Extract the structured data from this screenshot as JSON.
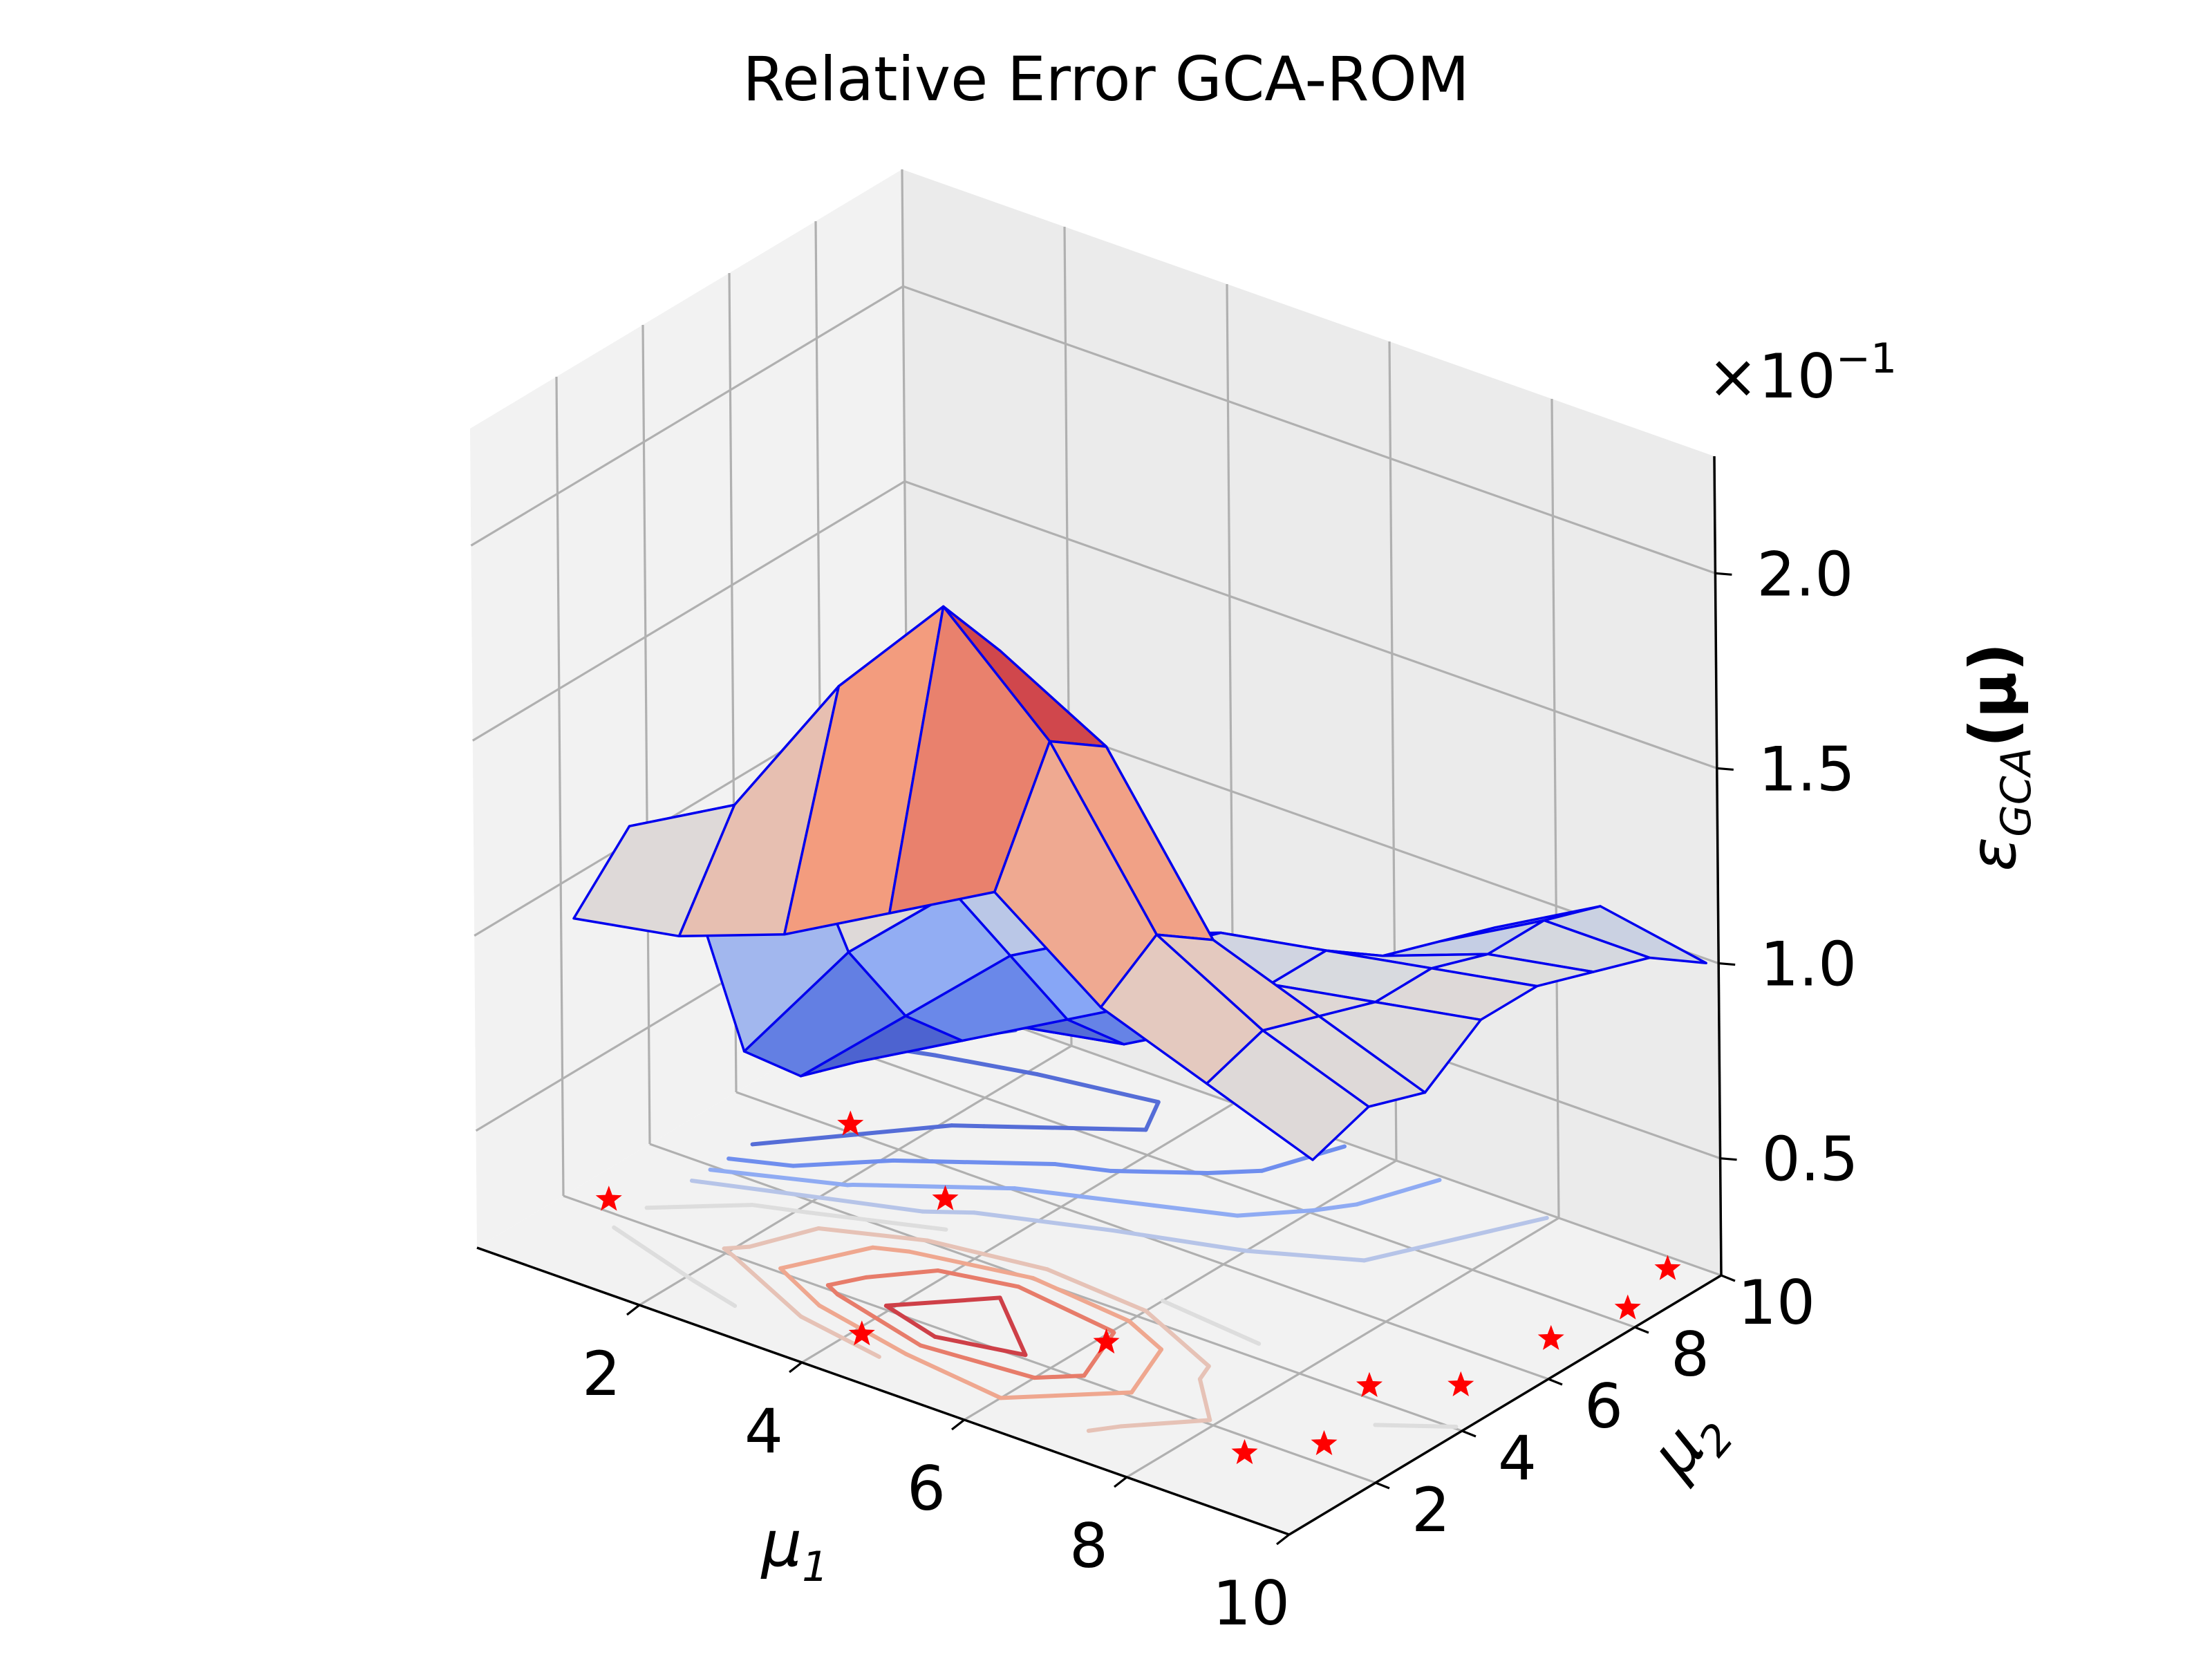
{
  "chart_data": {
    "type": "surface3d",
    "title": "Relative Error GCA-ROM",
    "x_label": "μ",
    "x_label_sub": "1",
    "y_label": "μ",
    "y_label_sub": "2",
    "z_label": "ε",
    "z_label_sub": "GCA",
    "z_label_arg": "(μ)",
    "z_multiplier_base": "×10",
    "z_multiplier_exp": "−1",
    "x_ticks": [
      "2",
      "4",
      "6",
      "8",
      "10"
    ],
    "y_ticks": [
      "2",
      "4",
      "6",
      "8",
      "10"
    ],
    "z_ticks": [
      "0.5",
      "1.0",
      "1.5",
      "2.0"
    ],
    "xlim": [
      0,
      10
    ],
    "ylim": [
      0,
      10
    ],
    "zlim": [
      0.2,
      2.3
    ],
    "grid": true,
    "colormap": "coolwarm",
    "edge_color": "#0000ee",
    "marker_color": "#ff0000",
    "x": [
      0.8,
      2.1,
      3.4,
      4.7,
      6.0,
      7.3,
      8.6,
      9.9
    ],
    "y": [
      0.8,
      2.1,
      3.4,
      4.7,
      6.0,
      7.3,
      8.6,
      9.9
    ],
    "z": [
      [
        1.05,
        1.1,
        1.2,
        1.35,
        1.5,
        1.3,
        1.2,
        1.1
      ],
      [
        1.2,
        1.35,
        1.75,
        2.05,
        1.8,
        1.4,
        1.25,
        1.15
      ],
      [
        1.0,
        1.25,
        1.6,
        1.85,
        1.7,
        1.3,
        1.2,
        1.1
      ],
      [
        0.45,
        0.8,
        1.05,
        1.15,
        1.1,
        1.1,
        1.15,
        1.2
      ],
      [
        0.3,
        0.55,
        0.8,
        0.95,
        1.05,
        1.1,
        1.15,
        1.2
      ],
      [
        0.25,
        0.4,
        0.55,
        0.7,
        0.85,
        1.0,
        1.1,
        1.15
      ],
      [
        0.45,
        0.35,
        0.4,
        0.55,
        0.75,
        0.95,
        1.1,
        1.1
      ],
      [
        0.3,
        0.6,
        0.45,
        0.5,
        0.7,
        0.9,
        1.05,
        1.0
      ]
    ],
    "training_points": [
      [
        0.3,
        9.5
      ],
      [
        0.2,
        7.4
      ],
      [
        1.3,
        6.2
      ],
      [
        0.4,
        2.3
      ],
      [
        3.0,
        5.2
      ],
      [
        4.1,
        1.2
      ],
      [
        6.1,
        3.1
      ],
      [
        8.6,
        1.6
      ],
      [
        9.1,
        2.5
      ],
      [
        9.5,
        7.0
      ],
      [
        9.7,
        8.4
      ],
      [
        9.5,
        9.7
      ],
      [
        8.7,
        4.3
      ],
      [
        9.4,
        5.1
      ]
    ]
  }
}
